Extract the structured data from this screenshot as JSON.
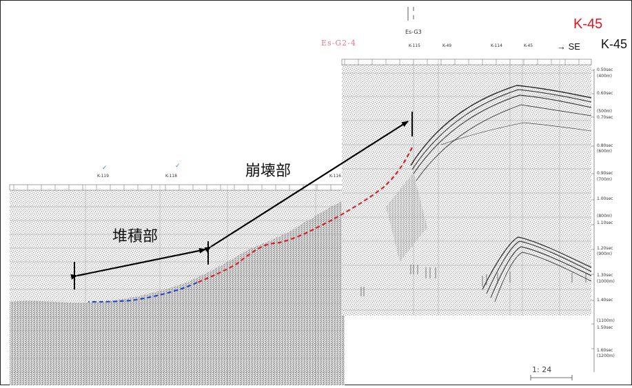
{
  "labels": {
    "collapse": "崩壊部",
    "deposit": "堆積部",
    "k45_red": "K-45",
    "k45_black": "K-45",
    "direction": "→ SE",
    "handwritten": "Es-G2-4",
    "es_g3": "Es-G3",
    "scale": "1: 24"
  },
  "shotpoints_right": [
    "K-115",
    "K-49",
    "K-114",
    "K-45"
  ],
  "shotpoints_left": [
    "K-119",
    "K-118",
    "K-116"
  ],
  "time_axis": [
    "0.50sec",
    "(400m)",
    "0.60sec",
    "(500m)",
    "0.70sec",
    "0.80sec",
    "(600m)",
    "0.90sec",
    "(700m)",
    "1.00sec",
    "(800m)",
    "1.10sec",
    "1.20sec",
    "(900m)",
    "1.30sec",
    "(1000m)",
    "1.40sec",
    "(1100m)",
    "1.50sec",
    "1.60sec",
    "(1200m)"
  ],
  "colors": {
    "collapse_line": "#e0141e",
    "deposit_line": "#1b3fd0",
    "arrow": "#000000",
    "k45": "#e0141e"
  }
}
